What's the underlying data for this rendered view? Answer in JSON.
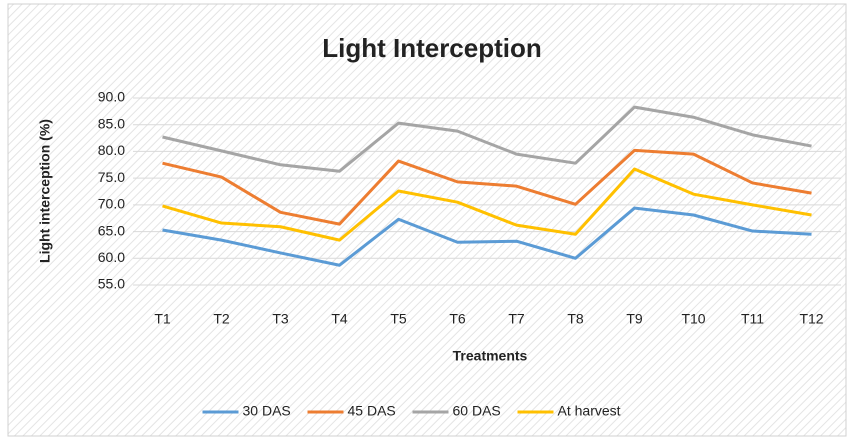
{
  "chart_data": {
    "type": "line",
    "title": "Light Interception",
    "x_label": "Treatments",
    "y_label": "Light interception (%)",
    "categories": [
      "T1",
      "T2",
      "T3",
      "T4",
      "T5",
      "T6",
      "T7",
      "T8",
      "T9",
      "T10",
      "T11",
      "T12"
    ],
    "series": [
      {
        "name": "30 DAS",
        "color": "#5b9bd5",
        "values": [
          65.3,
          63.4,
          61.0,
          58.7,
          67.3,
          63.0,
          63.2,
          60.0,
          69.4,
          68.1,
          65.1,
          64.5
        ]
      },
      {
        "name": "45 DAS",
        "color": "#ed7d31",
        "values": [
          77.8,
          75.2,
          68.6,
          66.4,
          78.2,
          74.3,
          73.5,
          70.1,
          80.2,
          79.5,
          74.1,
          72.2
        ]
      },
      {
        "name": "60 DAS",
        "color": "#a5a5a5",
        "values": [
          82.7,
          80.1,
          77.5,
          76.3,
          85.3,
          83.8,
          79.5,
          77.8,
          88.3,
          86.4,
          83.1,
          81.0
        ]
      },
      {
        "name": "At harvest",
        "color": "#ffc000",
        "values": [
          69.8,
          66.6,
          65.9,
          63.4,
          72.6,
          70.5,
          66.2,
          64.5,
          76.7,
          72.0,
          70.0,
          68.1
        ]
      }
    ],
    "ylim": [
      55,
      90
    ],
    "yticks": [
      {
        "value": 55,
        "label": "55.0"
      },
      {
        "value": 60,
        "label": "60.0"
      },
      {
        "value": 65,
        "label": "65.0"
      },
      {
        "value": 70,
        "label": "70.0"
      },
      {
        "value": 75,
        "label": "75.0"
      },
      {
        "value": 80,
        "label": "80.0"
      },
      {
        "value": 85,
        "label": "85.0"
      },
      {
        "value": 90,
        "label": "90.0"
      }
    ],
    "grid": true,
    "legend": "bottom"
  }
}
